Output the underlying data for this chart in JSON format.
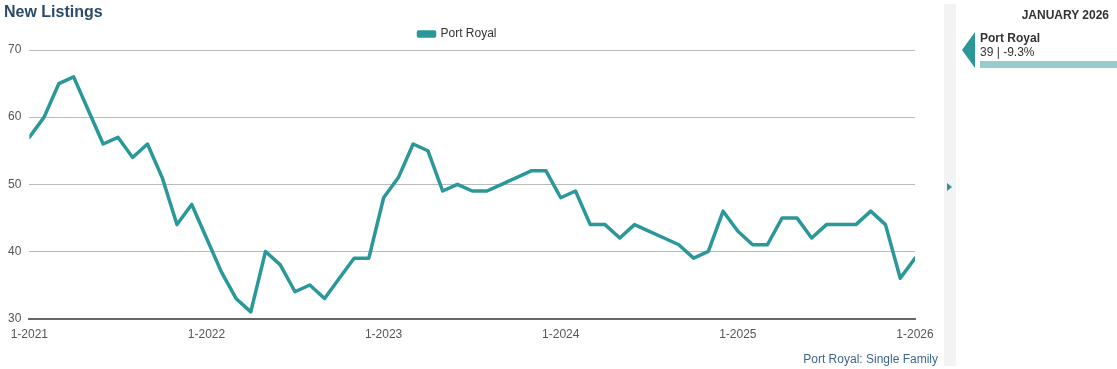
{
  "chart_data": {
    "type": "line",
    "title": "New Listings",
    "x": [
      "2021-01",
      "2021-02",
      "2021-03",
      "2021-04",
      "2021-05",
      "2021-06",
      "2021-07",
      "2021-08",
      "2021-09",
      "2021-10",
      "2021-11",
      "2021-12",
      "2022-01",
      "2022-02",
      "2022-03",
      "2022-04",
      "2022-05",
      "2022-06",
      "2022-07",
      "2022-08",
      "2022-09",
      "2022-10",
      "2022-11",
      "2022-12",
      "2023-01",
      "2023-02",
      "2023-03",
      "2023-04",
      "2023-05",
      "2023-06",
      "2023-07",
      "2023-08",
      "2023-09",
      "2023-10",
      "2023-11",
      "2023-12",
      "2024-01",
      "2024-02",
      "2024-03",
      "2024-04",
      "2024-05",
      "2024-06",
      "2024-07",
      "2024-08",
      "2024-09",
      "2024-10",
      "2024-11",
      "2024-12",
      "2025-01",
      "2025-02",
      "2025-03",
      "2025-04",
      "2025-05",
      "2025-06",
      "2025-07",
      "2025-08",
      "2025-09",
      "2025-10",
      "2025-11",
      "2025-12",
      "2026-01"
    ],
    "series": [
      {
        "name": "Port Royal",
        "color": "#2a9799",
        "values": [
          57,
          60,
          65,
          66,
          61,
          56,
          57,
          54,
          56,
          51,
          44,
          47,
          42,
          37,
          33,
          31,
          40,
          38,
          34,
          35,
          33,
          36,
          39,
          39,
          48,
          51,
          56,
          55,
          49,
          50,
          49,
          49,
          50,
          51,
          52,
          52,
          48,
          49,
          44,
          44,
          42,
          44,
          43,
          42,
          41,
          39,
          40,
          46,
          43,
          41,
          41,
          45,
          45,
          42,
          44,
          44,
          44,
          46,
          44,
          36,
          39
        ]
      }
    ],
    "xlim": [
      "2021-01",
      "2026-01"
    ],
    "xticks": [
      {
        "value": "2021-01",
        "label": "1-2021"
      },
      {
        "value": "2022-01",
        "label": "1-2022"
      },
      {
        "value": "2023-01",
        "label": "1-2023"
      },
      {
        "value": "2024-01",
        "label": "1-2024"
      },
      {
        "value": "2025-01",
        "label": "1-2025"
      },
      {
        "value": "2026-01",
        "label": "1-2026"
      }
    ],
    "ylim": [
      30,
      70
    ],
    "yticks": [
      30,
      40,
      50,
      60,
      70
    ],
    "grid": "y",
    "legend": "top",
    "marker": "none",
    "line_style": "solid",
    "annotations": [
      "Port Royal: Single Family",
      "JANUARY 2026",
      "Port Royal",
      "39 | -9.3%"
    ]
  }
}
